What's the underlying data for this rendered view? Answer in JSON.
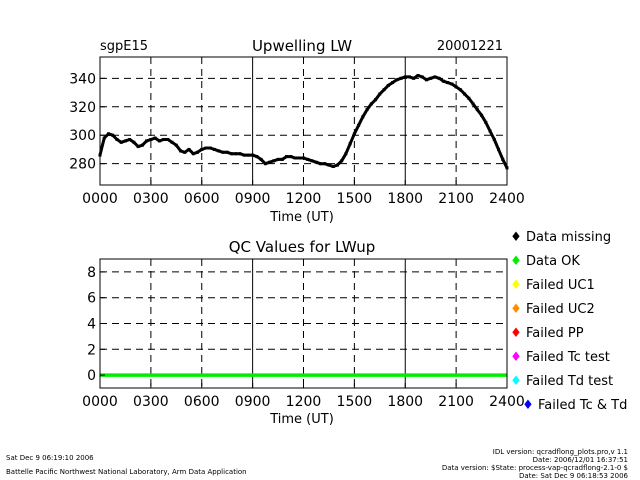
{
  "chart_data": [
    {
      "type": "line",
      "site": "sgpE15",
      "title": "Upwelling LW",
      "date": "20001221",
      "xlabel": "Time (UT)",
      "ylabel": "",
      "xlim": [
        0,
        24
      ],
      "ylim": [
        265,
        355
      ],
      "xtick_labels": [
        "0000",
        "0300",
        "0600",
        "0900",
        "1200",
        "1500",
        "1800",
        "2100",
        "2400"
      ],
      "ytick_labels": [
        "280",
        "300",
        "320",
        "340"
      ],
      "grid": "dashed",
      "series": [
        {
          "color": "#000000",
          "x": [
            0.0,
            0.25,
            0.5,
            0.75,
            1.0,
            1.25,
            1.5,
            1.75,
            2.0,
            2.25,
            2.5,
            2.75,
            3.0,
            3.25,
            3.5,
            3.75,
            4.0,
            4.25,
            4.5,
            4.75,
            5.0,
            5.25,
            5.5,
            5.75,
            6.0,
            6.25,
            6.5,
            6.75,
            7.0,
            7.25,
            7.5,
            7.75,
            8.0,
            8.25,
            8.5,
            8.75,
            9.0,
            9.25,
            9.5,
            9.75,
            10.0,
            10.25,
            10.5,
            10.75,
            11.0,
            11.25,
            11.5,
            11.75,
            12.0,
            12.25,
            12.5,
            12.75,
            13.0,
            13.25,
            13.5,
            13.75,
            14.0,
            14.25,
            14.5,
            14.75,
            15.0,
            15.25,
            15.5,
            15.75,
            16.0,
            16.25,
            16.5,
            16.75,
            17.0,
            17.25,
            17.5,
            17.75,
            18.0,
            18.25,
            18.5,
            18.75,
            19.0,
            19.25,
            19.5,
            19.75,
            20.0,
            20.25,
            20.5,
            20.75,
            21.0,
            21.25,
            21.5,
            21.75,
            22.0,
            22.25,
            22.5,
            22.75,
            23.0,
            23.25,
            23.5,
            23.75,
            24.0
          ],
          "y": [
            286,
            298,
            301,
            300,
            297,
            295,
            296,
            297,
            295,
            292,
            293,
            296,
            297,
            298,
            296,
            297,
            297,
            295,
            293,
            289,
            288,
            290,
            287,
            288,
            290,
            291,
            291,
            290,
            289,
            288,
            288,
            287,
            287,
            287,
            286,
            286,
            286,
            285,
            283,
            280,
            281,
            282,
            283,
            283,
            285,
            285,
            284,
            284,
            284,
            283,
            282,
            281,
            280,
            280,
            279,
            278,
            279,
            282,
            287,
            294,
            301,
            307,
            313,
            318,
            322,
            325,
            329,
            332,
            335,
            337,
            339,
            340,
            341,
            341,
            340,
            342,
            341,
            339,
            340,
            341,
            340,
            338,
            337,
            336,
            334,
            332,
            329,
            326,
            322,
            318,
            314,
            309,
            303,
            297,
            290,
            283,
            277
          ]
        }
      ]
    },
    {
      "type": "line",
      "title": "QC Values for LWup",
      "xlabel": "Time (UT)",
      "ylabel": "",
      "xlim": [
        0,
        24
      ],
      "ylim": [
        -1,
        9
      ],
      "xtick_labels": [
        "0000",
        "0300",
        "0600",
        "0900",
        "1200",
        "1500",
        "1800",
        "2100",
        "2400"
      ],
      "yticks": [
        0,
        2,
        4,
        6,
        8
      ],
      "ytick_labels": [
        "0",
        "2",
        "4",
        "6",
        "8"
      ],
      "grid": "dashed",
      "series": [
        {
          "name": "Data OK",
          "color": "#00ee00",
          "x": [
            0,
            24
          ],
          "y": [
            0,
            0
          ]
        }
      ],
      "legend": {
        "placement": "right",
        "entries": [
          {
            "label": "Data missing",
            "color": "#000000"
          },
          {
            "label": "Data OK",
            "color": "#00ee00"
          },
          {
            "label": "Failed UC1",
            "color": "#ffff00"
          },
          {
            "label": "Failed UC2",
            "color": "#ff8c00"
          },
          {
            "label": "Failed PP",
            "color": "#ff0000"
          },
          {
            "label": "Failed Tc test",
            "color": "#ff00ff"
          },
          {
            "label": "Failed Td test",
            "color": "#00ffff"
          },
          {
            "label": "Failed Tc & Td",
            "color": "#0000ff"
          }
        ]
      }
    }
  ],
  "footer": {
    "left_line1": "Sat Dec  9 06:19:10 2006",
    "left_line2": "Battelle Pacific Northwest National Laboratory, Arm Data Application",
    "right_line1": "IDL version: qcradflong_plots.pro,v 1.1",
    "right_line2": "Date: 2006/12/01 16:37:51",
    "right_line3": "Data version: $State: process-vap-qcradflong-2.1-0 $",
    "right_line4": "Date: Sat Dec  9 06:18:53 2006"
  }
}
